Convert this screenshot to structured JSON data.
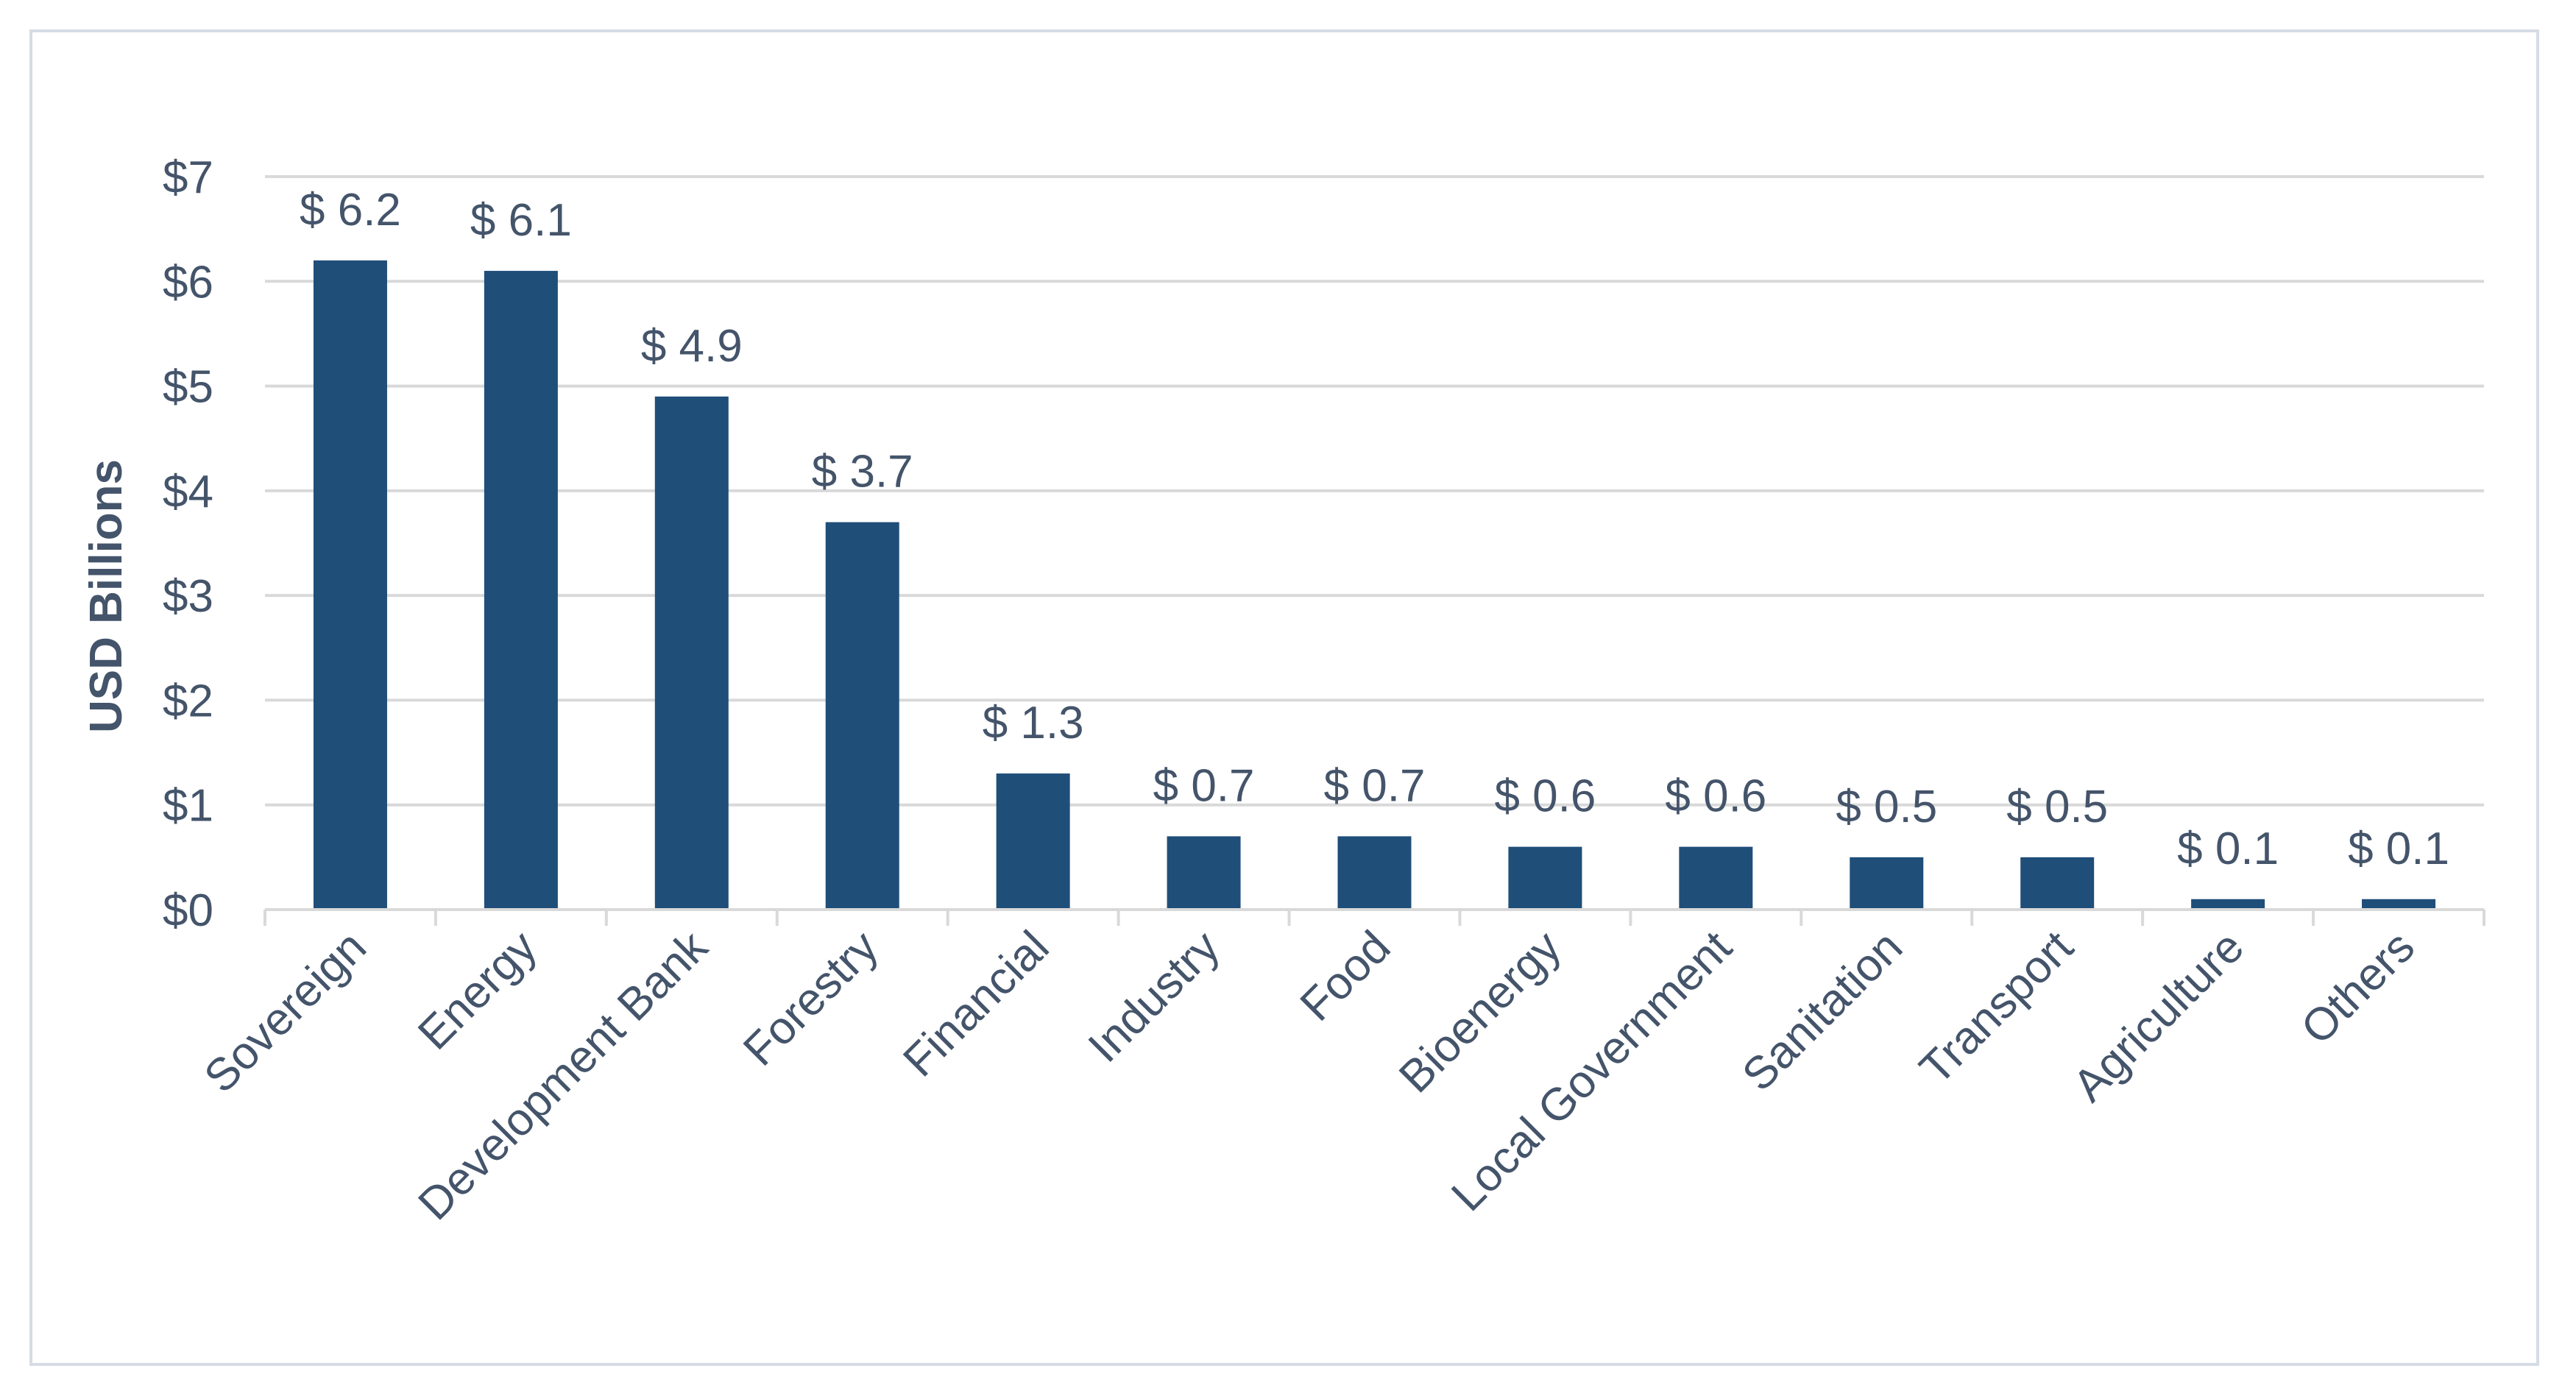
{
  "chart_data": {
    "type": "bar",
    "categories": [
      "Sovereign",
      "Energy",
      "Development Bank",
      "Forestry",
      "Financial",
      "Industry",
      "Food",
      "Bioenergy",
      "Local Government",
      "Sanitation",
      "Transport",
      "Agriculture",
      "Others"
    ],
    "values": [
      6.2,
      6.1,
      4.9,
      3.7,
      1.3,
      0.7,
      0.7,
      0.6,
      0.6,
      0.5,
      0.5,
      0.1,
      0.1
    ],
    "data_labels": [
      "$ 6.2",
      "$ 6.1",
      "$ 4.9",
      "$ 3.7",
      "$ 1.3",
      "$ 0.7",
      "$ 0.7",
      "$ 0.6",
      "$ 0.6",
      "$ 0.5",
      "$ 0.5",
      "$ 0.1",
      "$ 0.1"
    ],
    "title": "",
    "xlabel": "",
    "ylabel": "USD Billions",
    "ylim": [
      0,
      7
    ],
    "yticks": [
      0,
      1,
      2,
      3,
      4,
      5,
      6,
      7
    ],
    "ytick_labels": [
      "$0",
      "$1",
      "$2",
      "$3",
      "$4",
      "$5",
      "$6",
      "$7"
    ],
    "grid": true,
    "legend": "none",
    "colors": {
      "bar": "#1f4e79",
      "grid": "#d9d9d9",
      "axis": "#d9d9d9",
      "text": "#44546a",
      "frame": "#d6dce5"
    }
  }
}
